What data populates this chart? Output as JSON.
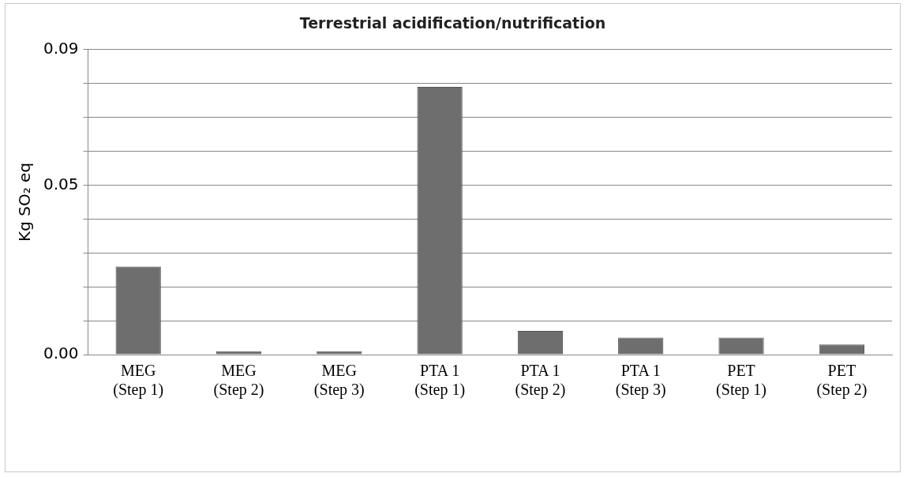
{
  "chart_data": {
    "type": "bar",
    "title": "Terrestrial acidification/nutrification",
    "ylabel": "Kg SO₂ eq",
    "categories": [
      "MEG (Step 1)",
      "MEG (Step 2)",
      "MEG (Step 3)",
      "PTA 1 (Step 1)",
      "PTA 1 (Step 2)",
      "PTA 1 (Step 3)",
      "PET (Step 1)",
      "PET (Step 2)"
    ],
    "values": [
      0.026,
      0.001,
      0.001,
      0.079,
      0.007,
      0.005,
      0.005,
      0.003
    ],
    "color": "#6e6e6e",
    "ylim": [
      0,
      0.09
    ],
    "yticks": [
      {
        "value": 0,
        "label": "0.00"
      },
      {
        "value": 0.01,
        "label": null
      },
      {
        "value": 0.02,
        "label": null
      },
      {
        "value": 0.03,
        "label": null
      },
      {
        "value": 0.04,
        "label": null
      },
      {
        "value": 0.05,
        "label": "0.05"
      },
      {
        "value": 0.06,
        "label": null
      },
      {
        "value": 0.07,
        "label": null
      },
      {
        "value": 0.08,
        "label": null
      },
      {
        "value": 0.09,
        "label": "0.09"
      }
    ],
    "grid": "y",
    "legend": false
  }
}
